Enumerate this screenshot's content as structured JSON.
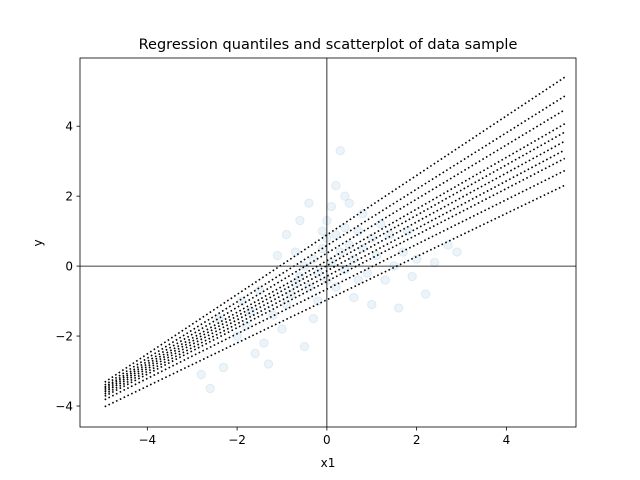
{
  "chart_data": {
    "type": "scatter",
    "title": "Regression quantiles and scatterplot of data sample",
    "xlabel": "x1",
    "ylabel": "y",
    "xlim": [
      -5.5,
      5.55
    ],
    "ylim": [
      -4.6,
      5.95
    ],
    "xticks": [
      -4,
      -2,
      0,
      2,
      4
    ],
    "yticks": [
      -4,
      -2,
      0,
      2,
      4
    ],
    "x_tick_labels": [
      "−4",
      "−2",
      "0",
      "2",
      "4"
    ],
    "y_tick_labels": [
      "−4",
      "−2",
      "0",
      "2",
      "4"
    ],
    "grid": false,
    "reference_lines": {
      "x": 0,
      "y": 0
    },
    "scatter": {
      "color": "#1f77b4",
      "alpha": 0.08,
      "points": [
        [
          -2.6,
          -3.5
        ],
        [
          -2.8,
          -3.1
        ],
        [
          -2.3,
          -2.9
        ],
        [
          -1.6,
          -2.5
        ],
        [
          -1.4,
          -2.2
        ],
        [
          -2.0,
          -2.0
        ],
        [
          -1.8,
          -1.7
        ],
        [
          -1.2,
          -1.4
        ],
        [
          -1.0,
          -1.8
        ],
        [
          -0.9,
          -1.1
        ],
        [
          -0.8,
          -0.8
        ],
        [
          -0.7,
          -0.5
        ],
        [
          -0.6,
          -0.3
        ],
        [
          -0.5,
          0.0
        ],
        [
          -0.4,
          -0.6
        ],
        [
          -0.3,
          0.2
        ],
        [
          -0.2,
          -0.2
        ],
        [
          -0.1,
          0.5
        ],
        [
          0.0,
          0.8
        ],
        [
          0.0,
          1.3
        ],
        [
          0.1,
          0.1
        ],
        [
          0.1,
          1.7
        ],
        [
          0.2,
          2.3
        ],
        [
          0.2,
          0.9
        ],
        [
          0.3,
          0.4
        ],
        [
          0.3,
          3.3
        ],
        [
          0.4,
          1.1
        ],
        [
          0.5,
          0.6
        ],
        [
          0.5,
          1.8
        ],
        [
          0.6,
          0.2
        ],
        [
          0.7,
          1.0
        ],
        [
          0.8,
          0.5
        ],
        [
          0.9,
          -0.2
        ],
        [
          1.0,
          0.8
        ],
        [
          1.1,
          0.3
        ],
        [
          1.2,
          1.2
        ],
        [
          1.3,
          -0.4
        ],
        [
          1.4,
          0.9
        ],
        [
          1.6,
          -1.2
        ],
        [
          1.7,
          0.4
        ],
        [
          1.9,
          -0.3
        ],
        [
          2.0,
          0.2
        ],
        [
          2.2,
          -0.8
        ],
        [
          2.4,
          0.1
        ],
        [
          2.7,
          0.6
        ],
        [
          2.9,
          0.4
        ],
        [
          -0.9,
          0.9
        ],
        [
          -1.1,
          0.3
        ],
        [
          -1.5,
          -0.7
        ],
        [
          -0.3,
          -1.5
        ],
        [
          0.6,
          -0.9
        ],
        [
          1.0,
          -1.1
        ],
        [
          -0.6,
          1.3
        ],
        [
          0.4,
          2.0
        ],
        [
          -1.9,
          -1.0
        ],
        [
          -2.4,
          -1.5
        ],
        [
          -0.2,
          -1.0
        ],
        [
          0.8,
          1.5
        ],
        [
          1.5,
          0.0
        ],
        [
          -0.7,
          0.4
        ],
        [
          0.0,
          -0.4
        ],
        [
          -1.3,
          -2.8
        ],
        [
          -0.5,
          -2.3
        ],
        [
          0.2,
          -0.6
        ],
        [
          1.8,
          1.0
        ],
        [
          -0.4,
          1.8
        ],
        [
          0.7,
          -0.4
        ],
        [
          -1.7,
          -1.3
        ],
        [
          -0.1,
          1.0
        ],
        [
          0.4,
          -0.1
        ]
      ]
    },
    "quantile_lines": {
      "style": "dotted",
      "color": "#000000",
      "x_range": [
        -4.95,
        5.3
      ],
      "lines": [
        {
          "y_at_xmin": -3.32,
          "y_at_xmax": 5.4
        },
        {
          "y_at_xmin": -3.4,
          "y_at_xmax": 4.86
        },
        {
          "y_at_xmin": -3.46,
          "y_at_xmax": 4.47
        },
        {
          "y_at_xmin": -3.5,
          "y_at_xmax": 4.07
        },
        {
          "y_at_xmin": -3.55,
          "y_at_xmax": 3.83
        },
        {
          "y_at_xmin": -3.6,
          "y_at_xmax": 3.57
        },
        {
          "y_at_xmin": -3.66,
          "y_at_xmax": 3.32
        },
        {
          "y_at_xmin": -3.72,
          "y_at_xmax": 3.08
        },
        {
          "y_at_xmin": -3.82,
          "y_at_xmax": 2.73
        },
        {
          "y_at_xmin": -4.02,
          "y_at_xmax": 2.31
        }
      ]
    }
  }
}
